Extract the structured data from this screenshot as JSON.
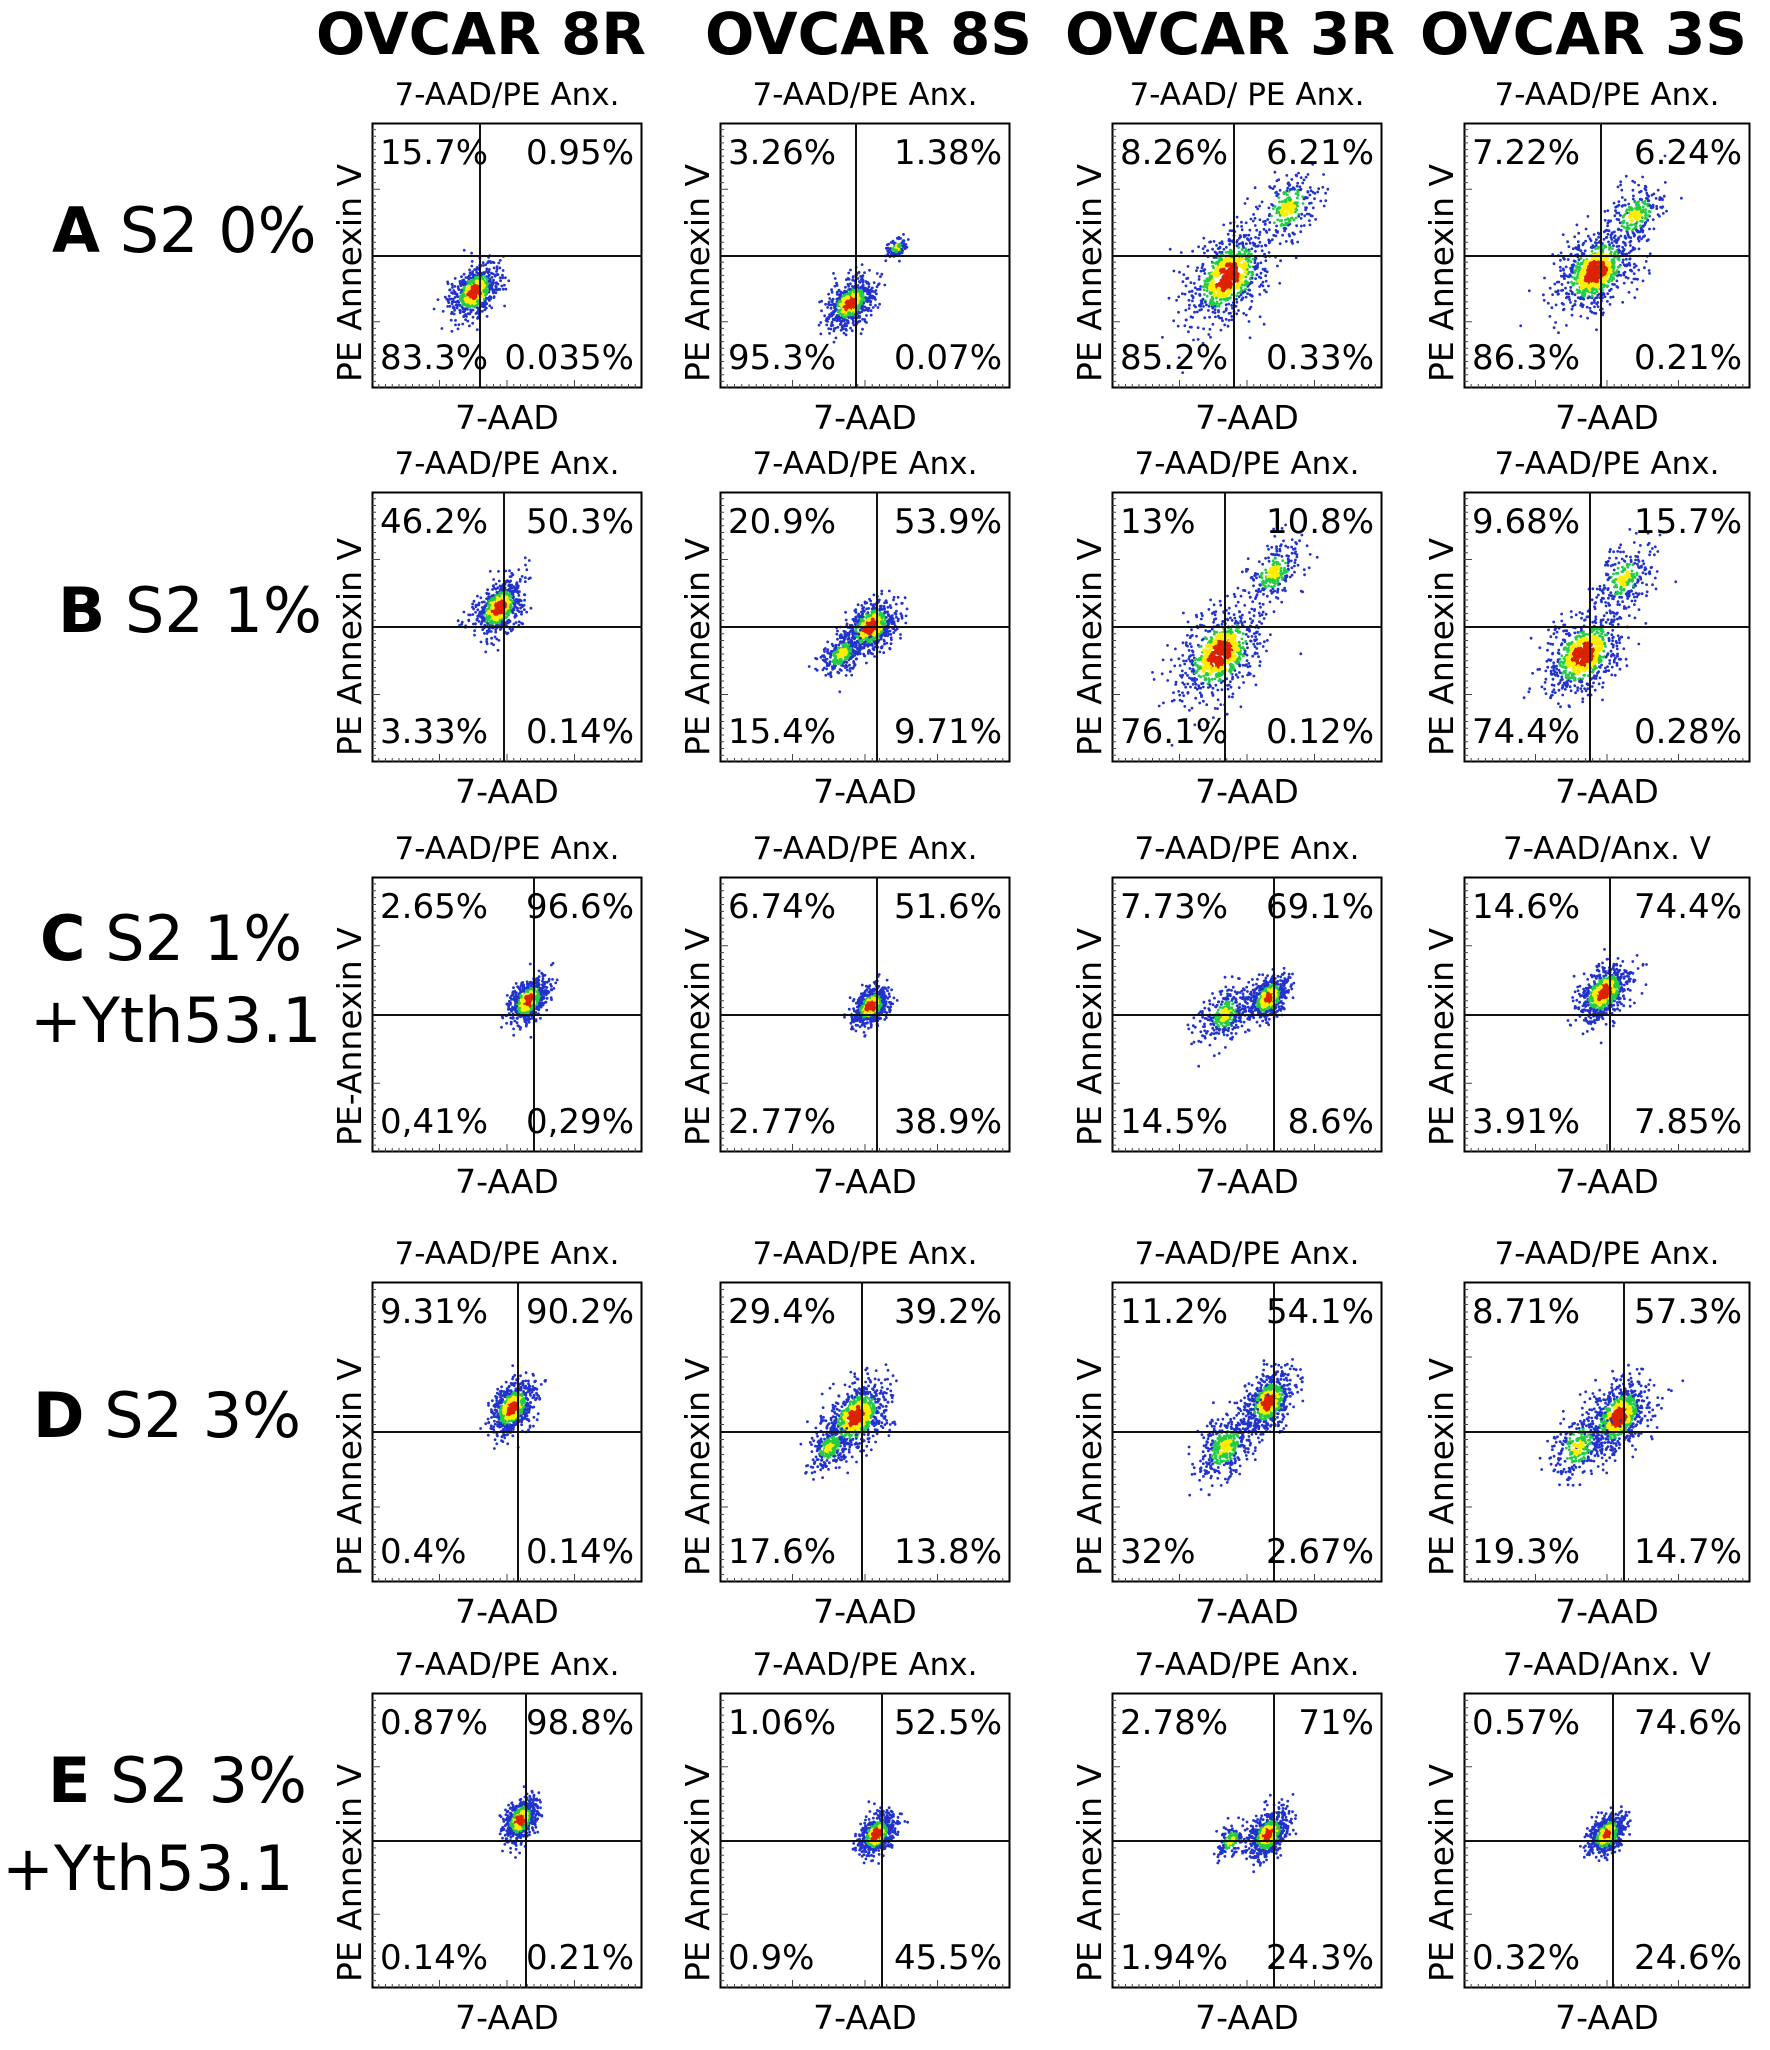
{
  "figure": {
    "columns": [
      "OVCAR 8R",
      "OVCAR 8S",
      "OVCAR 3R",
      "OVCAR 3S"
    ],
    "rows": [
      {
        "letter": "A",
        "label": "S2 0%",
        "sub": ""
      },
      {
        "letter": "B",
        "label": "S2 1%",
        "sub": ""
      },
      {
        "letter": "C",
        "label": "S2 1%",
        "sub": "+Yth53.1"
      },
      {
        "letter": "D",
        "label": "S2 3%",
        "sub": ""
      },
      {
        "letter": "E",
        "label": "S2 3%",
        "sub": "+Yth53.1"
      }
    ]
  },
  "colors": {
    "density_low": "#2233cc",
    "density_mid": "#22cc44",
    "density_high": "#ffee00",
    "density_peak": "#dd2200",
    "frame": "#000000"
  },
  "chart_data": [
    {
      "type": "scatter",
      "row": "A",
      "column": "OVCAR 8R",
      "title": "7-AAD/PE Anx.",
      "xlabel": "7-AAD",
      "ylabel": "PE Annexin V",
      "quadrants": {
        "upper_left": "15.7%",
        "upper_right": "0.95%",
        "lower_left": "83.3%",
        "lower_right": "0.035%"
      },
      "populations": [
        {
          "x": 0.38,
          "y": 0.36,
          "spread": 0.05,
          "weight": 1.0,
          "peak": true
        }
      ]
    },
    {
      "type": "scatter",
      "row": "A",
      "column": "OVCAR 8S",
      "title": "7-AAD/PE Anx.",
      "xlabel": "7-AAD",
      "ylabel": "PE Annexin V",
      "quadrants": {
        "upper_left": "3.26%",
        "upper_right": "1.38%",
        "lower_left": "95.3%",
        "lower_right": "0.07%"
      },
      "populations": [
        {
          "x": 0.45,
          "y": 0.32,
          "spread": 0.045,
          "weight": 1.0,
          "peak": true
        },
        {
          "x": 0.61,
          "y": 0.53,
          "spread": 0.02,
          "weight": 0.15,
          "peak": false
        }
      ]
    },
    {
      "type": "scatter",
      "row": "A",
      "column": "OVCAR 3R",
      "title": "7-AAD/ PE Anx.",
      "xlabel": "7-AAD",
      "ylabel": "PE Annexin V",
      "quadrants": {
        "upper_left": "8.26%",
        "upper_right": "6.21%",
        "lower_left": "85.2%",
        "lower_right": "0.33%"
      },
      "populations": [
        {
          "x": 0.43,
          "y": 0.42,
          "spread": 0.09,
          "weight": 1.0,
          "peak": true
        },
        {
          "x": 0.65,
          "y": 0.68,
          "spread": 0.07,
          "weight": 0.35,
          "peak": false
        }
      ]
    },
    {
      "type": "scatter",
      "row": "A",
      "column": "OVCAR 3S",
      "title": "7-AAD/PE Anx.",
      "xlabel": "7-AAD",
      "ylabel": "PE Annexin V",
      "quadrants": {
        "upper_left": "7.22%",
        "upper_right": "6.24%",
        "lower_left": "86.3%",
        "lower_right": "0.21%"
      },
      "populations": [
        {
          "x": 0.46,
          "y": 0.44,
          "spread": 0.08,
          "weight": 1.0,
          "peak": true
        },
        {
          "x": 0.6,
          "y": 0.65,
          "spread": 0.06,
          "weight": 0.35,
          "peak": false
        }
      ]
    },
    {
      "type": "scatter",
      "row": "B",
      "column": "OVCAR 8R",
      "title": "7-AAD/PE Anx.",
      "xlabel": "7-AAD",
      "ylabel": "PE Annexin V",
      "quadrants": {
        "upper_left": "46.2%",
        "upper_right": "50.3%",
        "lower_left": "3.33%",
        "lower_right": "0.14%"
      },
      "populations": [
        {
          "x": 0.47,
          "y": 0.57,
          "spread": 0.05,
          "weight": 1.0,
          "peak": true
        }
      ]
    },
    {
      "type": "scatter",
      "row": "B",
      "column": "OVCAR 8S",
      "title": "7-AAD/PE Anx.",
      "xlabel": "7-AAD",
      "ylabel": "PE Annexin V",
      "quadrants": {
        "upper_left": "20.9%",
        "upper_right": "53.9%",
        "lower_left": "15.4%",
        "lower_right": "9.71%"
      },
      "populations": [
        {
          "x": 0.52,
          "y": 0.5,
          "spread": 0.05,
          "weight": 1.0,
          "peak": true
        },
        {
          "x": 0.42,
          "y": 0.4,
          "spread": 0.04,
          "weight": 0.4,
          "peak": false
        }
      ]
    },
    {
      "type": "scatter",
      "row": "B",
      "column": "OVCAR 3R",
      "title": "7-AAD/PE Anx.",
      "xlabel": "7-AAD",
      "ylabel": "PE Annexin V",
      "quadrants": {
        "upper_left": "13%",
        "upper_right": "10.8%",
        "lower_left": "76.1%",
        "lower_right": "0.12%"
      },
      "populations": [
        {
          "x": 0.4,
          "y": 0.4,
          "spread": 0.09,
          "weight": 1.0,
          "peak": true
        },
        {
          "x": 0.6,
          "y": 0.7,
          "spread": 0.06,
          "weight": 0.35,
          "peak": false
        }
      ]
    },
    {
      "type": "scatter",
      "row": "B",
      "column": "OVCAR 3S",
      "title": "7-AAD/PE Anx.",
      "xlabel": "7-AAD",
      "ylabel": "PE Annexin V",
      "quadrants": {
        "upper_left": "9.68%",
        "upper_right": "15.7%",
        "lower_left": "74.4%",
        "lower_right": "0.28%"
      },
      "populations": [
        {
          "x": 0.42,
          "y": 0.4,
          "spread": 0.08,
          "weight": 1.0,
          "peak": true
        },
        {
          "x": 0.56,
          "y": 0.68,
          "spread": 0.06,
          "weight": 0.35,
          "peak": false
        }
      ]
    },
    {
      "type": "scatter",
      "row": "C",
      "column": "OVCAR 8R",
      "title": "7-AAD/PE Anx.",
      "xlabel": "7-AAD",
      "ylabel": "PE-Annexin V",
      "quadrants": {
        "upper_left": "2.65%",
        "upper_right": "96.6%",
        "lower_left": "0,41%",
        "lower_right": "0,29%"
      },
      "populations": [
        {
          "x": 0.58,
          "y": 0.55,
          "spread": 0.04,
          "weight": 1.0,
          "peak": true
        }
      ]
    },
    {
      "type": "scatter",
      "row": "C",
      "column": "OVCAR 8S",
      "title": "7-AAD/PE Anx.",
      "xlabel": "7-AAD",
      "ylabel": "PE Annexin V",
      "quadrants": {
        "upper_left": "6.74%",
        "upper_right": "51.6%",
        "lower_left": "2.77%",
        "lower_right": "38.9%"
      },
      "populations": [
        {
          "x": 0.52,
          "y": 0.53,
          "spread": 0.035,
          "weight": 1.0,
          "peak": true
        }
      ]
    },
    {
      "type": "scatter",
      "row": "C",
      "column": "OVCAR 3R",
      "title": "7-AAD/PE Anx.",
      "xlabel": "7-AAD",
      "ylabel": "PE Annexin V",
      "quadrants": {
        "upper_left": "7.73%",
        "upper_right": "69.1%",
        "lower_left": "14.5%",
        "lower_right": "8.6%"
      },
      "populations": [
        {
          "x": 0.58,
          "y": 0.56,
          "spread": 0.04,
          "weight": 1.0,
          "peak": true
        },
        {
          "x": 0.42,
          "y": 0.5,
          "spread": 0.05,
          "weight": 0.5,
          "peak": false
        }
      ]
    },
    {
      "type": "scatter",
      "row": "C",
      "column": "OVCAR 3S",
      "title": "7-AAD/Anx. V",
      "xlabel": "7-AAD",
      "ylabel": "PE Annexin V",
      "quadrants": {
        "upper_left": "14.6%",
        "upper_right": "74.4%",
        "lower_left": "3.91%",
        "lower_right": "7.85%"
      },
      "populations": [
        {
          "x": 0.49,
          "y": 0.58,
          "spread": 0.05,
          "weight": 1.0,
          "peak": true
        }
      ]
    },
    {
      "type": "scatter",
      "row": "D",
      "column": "OVCAR 8R",
      "title": "7-AAD/PE Anx.",
      "xlabel": "7-AAD",
      "ylabel": "PE Annexin V",
      "quadrants": {
        "upper_left": "9.31%",
        "upper_right": "90.2%",
        "lower_left": "0.4%",
        "lower_right": "0.14%"
      },
      "populations": [
        {
          "x": 0.52,
          "y": 0.58,
          "spread": 0.045,
          "weight": 1.0,
          "peak": true
        }
      ]
    },
    {
      "type": "scatter",
      "row": "D",
      "column": "OVCAR 8S",
      "title": "7-AAD/PE Anx.",
      "xlabel": "7-AAD",
      "ylabel": "PE Annexin V",
      "quadrants": {
        "upper_left": "29.4%",
        "upper_right": "39.2%",
        "lower_left": "17.6%",
        "lower_right": "13.8%"
      },
      "populations": [
        {
          "x": 0.47,
          "y": 0.55,
          "spread": 0.06,
          "weight": 1.0,
          "peak": true
        },
        {
          "x": 0.38,
          "y": 0.45,
          "spread": 0.04,
          "weight": 0.35,
          "peak": false
        }
      ]
    },
    {
      "type": "scatter",
      "row": "D",
      "column": "OVCAR 3R",
      "title": "7-AAD/PE Anx.",
      "xlabel": "7-AAD",
      "ylabel": "PE Annexin V",
      "quadrants": {
        "upper_left": "11.2%",
        "upper_right": "54.1%",
        "lower_left": "32%",
        "lower_right": "2.67%"
      },
      "populations": [
        {
          "x": 0.58,
          "y": 0.6,
          "spread": 0.05,
          "weight": 1.0,
          "peak": true
        },
        {
          "x": 0.42,
          "y": 0.45,
          "spread": 0.06,
          "weight": 0.6,
          "peak": false
        }
      ]
    },
    {
      "type": "scatter",
      "row": "D",
      "column": "OVCAR 3S",
      "title": "7-AAD/PE Anx.",
      "xlabel": "7-AAD",
      "ylabel": "PE Annexin V",
      "quadrants": {
        "upper_left": "8.71%",
        "upper_right": "57.3%",
        "lower_left": "19.3%",
        "lower_right": "14.7%"
      },
      "populations": [
        {
          "x": 0.54,
          "y": 0.55,
          "spread": 0.06,
          "weight": 1.0,
          "peak": true
        },
        {
          "x": 0.4,
          "y": 0.45,
          "spread": 0.06,
          "weight": 0.4,
          "peak": false
        }
      ]
    },
    {
      "type": "scatter",
      "row": "E",
      "column": "OVCAR 8R",
      "title": "7-AAD/PE Anx.",
      "xlabel": "7-AAD",
      "ylabel": "PE Annexin V",
      "quadrants": {
        "upper_left": "0.87%",
        "upper_right": "98.8%",
        "lower_left": "0.14%",
        "lower_right": "0.21%"
      },
      "populations": [
        {
          "x": 0.55,
          "y": 0.57,
          "spread": 0.035,
          "weight": 1.0,
          "peak": true
        }
      ]
    },
    {
      "type": "scatter",
      "row": "E",
      "column": "OVCAR 8S",
      "title": "7-AAD/PE Anx.",
      "xlabel": "7-AAD",
      "ylabel": "PE Annexin V",
      "quadrants": {
        "upper_left": "1.06%",
        "upper_right": "52.5%",
        "lower_left": "0.9%",
        "lower_right": "45.5%"
      },
      "populations": [
        {
          "x": 0.54,
          "y": 0.52,
          "spread": 0.035,
          "weight": 1.0,
          "peak": true
        }
      ]
    },
    {
      "type": "scatter",
      "row": "E",
      "column": "OVCAR 3R",
      "title": "7-AAD/PE Anx.",
      "xlabel": "7-AAD",
      "ylabel": "PE Annexin V",
      "quadrants": {
        "upper_left": "2.78%",
        "upper_right": "71%",
        "lower_left": "1.94%",
        "lower_right": "24.3%"
      },
      "populations": [
        {
          "x": 0.58,
          "y": 0.52,
          "spread": 0.04,
          "weight": 1.0,
          "peak": true
        },
        {
          "x": 0.44,
          "y": 0.5,
          "spread": 0.03,
          "weight": 0.2,
          "peak": false
        }
      ]
    },
    {
      "type": "scatter",
      "row": "E",
      "column": "OVCAR 3S",
      "title": "7-AAD/Anx. V",
      "xlabel": "7-AAD",
      "ylabel": "PE Annexin V",
      "quadrants": {
        "upper_left": "0.57%",
        "upper_right": "74.6%",
        "lower_left": "0.32%",
        "lower_right": "24.6%"
      },
      "populations": [
        {
          "x": 0.5,
          "y": 0.52,
          "spread": 0.035,
          "weight": 1.0,
          "peak": true
        }
      ]
    }
  ]
}
